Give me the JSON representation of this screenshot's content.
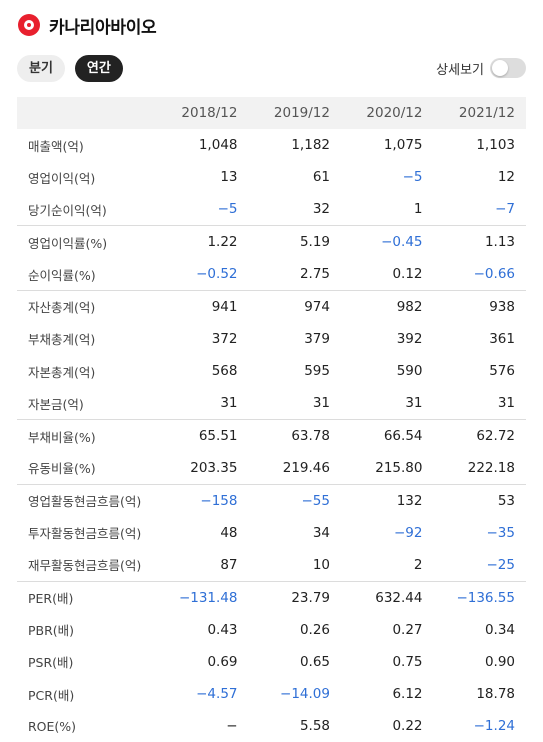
{
  "header": {
    "company": "카나리아바이오"
  },
  "tabs": [
    {
      "label": "분기",
      "active": false
    },
    {
      "label": "연간",
      "active": true
    }
  ],
  "detail_toggle": {
    "label": "상세보기",
    "on": false
  },
  "colors": {
    "negative": "#2f6fd6",
    "logo": "#e8202e",
    "active_tab": "#222222"
  },
  "table": {
    "columns": [
      "2018/12",
      "2019/12",
      "2020/12",
      "2021/12"
    ],
    "rows": [
      {
        "label": "매출액(억)",
        "values": [
          "1,048",
          "1,182",
          "1,075",
          "1,103"
        ],
        "group_start": false
      },
      {
        "label": "영업이익(억)",
        "values": [
          "13",
          "61",
          "−5",
          "12"
        ],
        "group_start": false
      },
      {
        "label": "당기순이익(억)",
        "values": [
          "−5",
          "32",
          "1",
          "−7"
        ],
        "group_start": false
      },
      {
        "label": "영업이익률(%)",
        "values": [
          "1.22",
          "5.19",
          "−0.45",
          "1.13"
        ],
        "group_start": true
      },
      {
        "label": "순이익률(%)",
        "values": [
          "−0.52",
          "2.75",
          "0.12",
          "−0.66"
        ],
        "group_start": false
      },
      {
        "label": "자산총계(억)",
        "values": [
          "941",
          "974",
          "982",
          "938"
        ],
        "group_start": true
      },
      {
        "label": "부채총계(억)",
        "values": [
          "372",
          "379",
          "392",
          "361"
        ],
        "group_start": false
      },
      {
        "label": "자본총계(억)",
        "values": [
          "568",
          "595",
          "590",
          "576"
        ],
        "group_start": false
      },
      {
        "label": "자본금(억)",
        "values": [
          "31",
          "31",
          "31",
          "31"
        ],
        "group_start": false
      },
      {
        "label": "부채비율(%)",
        "values": [
          "65.51",
          "63.78",
          "66.54",
          "62.72"
        ],
        "group_start": true
      },
      {
        "label": "유동비율(%)",
        "values": [
          "203.35",
          "219.46",
          "215.80",
          "222.18"
        ],
        "group_start": false
      },
      {
        "label": "영업활동현금흐름(억)",
        "values": [
          "−158",
          "−55",
          "132",
          "53"
        ],
        "group_start": true
      },
      {
        "label": "투자활동현금흐름(억)",
        "values": [
          "48",
          "34",
          "−92",
          "−35"
        ],
        "group_start": false
      },
      {
        "label": "재무활동현금흐름(억)",
        "values": [
          "87",
          "10",
          "2",
          "−25"
        ],
        "group_start": false
      },
      {
        "label": "PER(배)",
        "values": [
          "−131.48",
          "23.79",
          "632.44",
          "−136.55"
        ],
        "group_start": true
      },
      {
        "label": "PBR(배)",
        "values": [
          "0.43",
          "0.26",
          "0.27",
          "0.34"
        ],
        "group_start": false
      },
      {
        "label": "PSR(배)",
        "values": [
          "0.69",
          "0.65",
          "0.75",
          "0.90"
        ],
        "group_start": false
      },
      {
        "label": "PCR(배)",
        "values": [
          "−4.57",
          "−14.09",
          "6.12",
          "18.78"
        ],
        "group_start": false
      },
      {
        "label": "ROE(%)",
        "values": [
          "−",
          "5.58",
          "0.22",
          "−1.24"
        ],
        "group_start": false
      }
    ]
  }
}
